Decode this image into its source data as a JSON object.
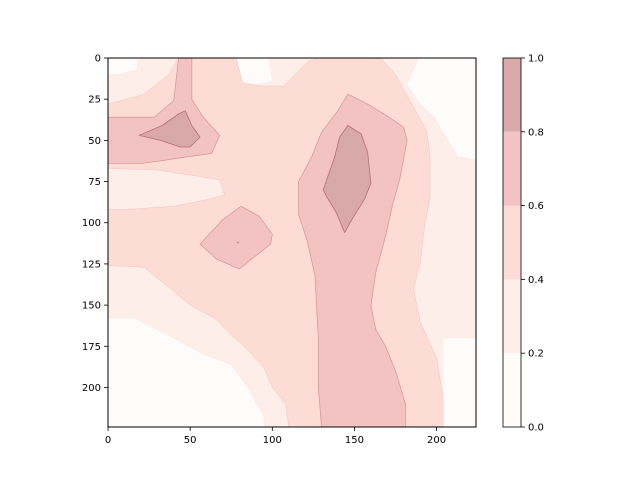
{
  "chart_data": {
    "type": "heatmap",
    "subtype": "filled-contour",
    "title": "",
    "xlabel": "",
    "ylabel": "",
    "x_range": [
      0,
      224
    ],
    "y_range": [
      0,
      224
    ],
    "y_inverted": true,
    "x_ticks": [
      0,
      50,
      100,
      150,
      200
    ],
    "y_ticks": [
      0,
      25,
      50,
      75,
      100,
      125,
      150,
      175,
      200
    ],
    "colormap": "Reds",
    "alpha": 0.35,
    "levels": [
      0.0,
      0.2,
      0.4,
      0.6,
      0.8,
      1.0
    ],
    "level_colors": [
      "#fefcfb",
      "#fdeee9",
      "#fcdcd5",
      "#f3c3c3",
      "#d9a9aa"
    ],
    "colorbar": {
      "position": "right",
      "ticks": [
        0.0,
        0.2,
        0.4,
        0.6,
        0.8,
        1.0
      ],
      "tick_labels": [
        "0.0",
        "0.2",
        "0.4",
        "0.6",
        "0.8",
        "1.0"
      ]
    },
    "regions": [
      {
        "band": 1,
        "outline": [
          [
            0,
            0
          ],
          [
            224,
            0
          ],
          [
            224,
            224
          ],
          [
            0,
            224
          ]
        ]
      },
      {
        "band": 0,
        "outline": [
          [
            166,
            0
          ],
          [
            224,
            0
          ],
          [
            224,
            224
          ],
          [
            204,
            224
          ],
          [
            204,
            170
          ],
          [
            224,
            170
          ],
          [
            224,
            62
          ],
          [
            213,
            60
          ],
          [
            198,
            35
          ],
          [
            190,
            28
          ],
          [
            182,
            16
          ],
          [
            189,
            0
          ]
        ]
      },
      {
        "band": 0,
        "outline": [
          [
            0,
            158
          ],
          [
            16,
            158
          ],
          [
            36,
            168
          ],
          [
            58,
            180
          ],
          [
            75,
            186
          ],
          [
            85,
            200
          ],
          [
            95,
            218
          ],
          [
            95,
            224
          ],
          [
            0,
            224
          ]
        ]
      },
      {
        "band": 0,
        "outline": [
          [
            78,
            0
          ],
          [
            98,
            0
          ],
          [
            100,
            14
          ],
          [
            86,
            17
          ],
          [
            78,
            16
          ]
        ]
      },
      {
        "band": 0,
        "outline": [
          [
            0,
            0
          ],
          [
            18,
            0
          ],
          [
            18,
            7
          ],
          [
            6,
            10
          ],
          [
            0,
            10
          ]
        ]
      },
      {
        "band": 2,
        "outline": [
          [
            0,
            28
          ],
          [
            22,
            22
          ],
          [
            37,
            10
          ],
          [
            43,
            0
          ],
          [
            78,
            0
          ],
          [
            82,
            15
          ],
          [
            93,
            17
          ],
          [
            107,
            17
          ],
          [
            122,
            2
          ],
          [
            128,
            0
          ],
          [
            166,
            0
          ],
          [
            175,
            10
          ],
          [
            186,
            30
          ],
          [
            194,
            44
          ],
          [
            196,
            60
          ],
          [
            196,
            85
          ],
          [
            193,
            100
          ],
          [
            190,
            125
          ],
          [
            186,
            140
          ],
          [
            190,
            160
          ],
          [
            200,
            182
          ],
          [
            204,
            206
          ],
          [
            204,
            224
          ],
          [
            110,
            224
          ],
          [
            108,
            210
          ],
          [
            100,
            200
          ],
          [
            95,
            188
          ],
          [
            85,
            177
          ],
          [
            75,
            168
          ],
          [
            65,
            158
          ],
          [
            50,
            150
          ],
          [
            38,
            140
          ],
          [
            22,
            127
          ],
          [
            0,
            126
          ],
          [
            0,
            92
          ],
          [
            10,
            92
          ],
          [
            40,
            90
          ],
          [
            60,
            86
          ],
          [
            71,
            83
          ],
          [
            68,
            74
          ],
          [
            56,
            72
          ],
          [
            30,
            68
          ],
          [
            0,
            67
          ]
        ]
      },
      {
        "band": 3,
        "outline": [
          [
            0,
            36
          ],
          [
            28,
            36
          ],
          [
            40,
            26
          ],
          [
            43,
            0
          ],
          [
            51,
            0
          ],
          [
            51,
            25
          ],
          [
            58,
            36
          ],
          [
            68,
            47
          ],
          [
            63,
            58
          ],
          [
            48,
            60
          ],
          [
            35,
            62
          ],
          [
            21,
            64
          ],
          [
            0,
            64
          ]
        ]
      },
      {
        "band": 3,
        "outline": [
          [
            56,
            113
          ],
          [
            70,
            98
          ],
          [
            81,
            90
          ],
          [
            92,
            96
          ],
          [
            100,
            107
          ],
          [
            99,
            113
          ],
          [
            90,
            120
          ],
          [
            80,
            128
          ],
          [
            66,
            122
          ]
        ]
      },
      {
        "band": 3,
        "outline": [
          [
            130,
            224
          ],
          [
            128,
            200
          ],
          [
            128,
            170
          ],
          [
            126,
            132
          ],
          [
            121,
            110
          ],
          [
            116,
            95
          ],
          [
            116,
            75
          ],
          [
            124,
            60
          ],
          [
            130,
            45
          ],
          [
            140,
            32
          ],
          [
            146,
            22
          ],
          [
            158,
            28
          ],
          [
            168,
            34
          ],
          [
            180,
            42
          ],
          [
            182,
            50
          ],
          [
            178,
            72
          ],
          [
            173,
            90
          ],
          [
            169,
            108
          ],
          [
            163,
            130
          ],
          [
            160,
            150
          ],
          [
            163,
            165
          ],
          [
            169,
            175
          ],
          [
            175,
            190
          ],
          [
            181,
            210
          ],
          [
            181,
            224
          ]
        ]
      },
      {
        "band": 4,
        "outline": [
          [
            19,
            47
          ],
          [
            33,
            41
          ],
          [
            43,
            34
          ],
          [
            47,
            32
          ],
          [
            51,
            41
          ],
          [
            56,
            48
          ],
          [
            50,
            54
          ],
          [
            44,
            54
          ],
          [
            32,
            50
          ]
        ]
      },
      {
        "band": 4,
        "outline": [
          [
            131,
            80
          ],
          [
            138,
            60
          ],
          [
            141,
            48
          ],
          [
            146,
            41
          ],
          [
            154,
            46
          ],
          [
            158,
            57
          ],
          [
            160,
            76
          ],
          [
            156,
            86
          ],
          [
            149,
            97
          ],
          [
            144,
            106
          ],
          [
            139,
            94
          ],
          [
            133,
            84
          ]
        ]
      }
    ]
  }
}
